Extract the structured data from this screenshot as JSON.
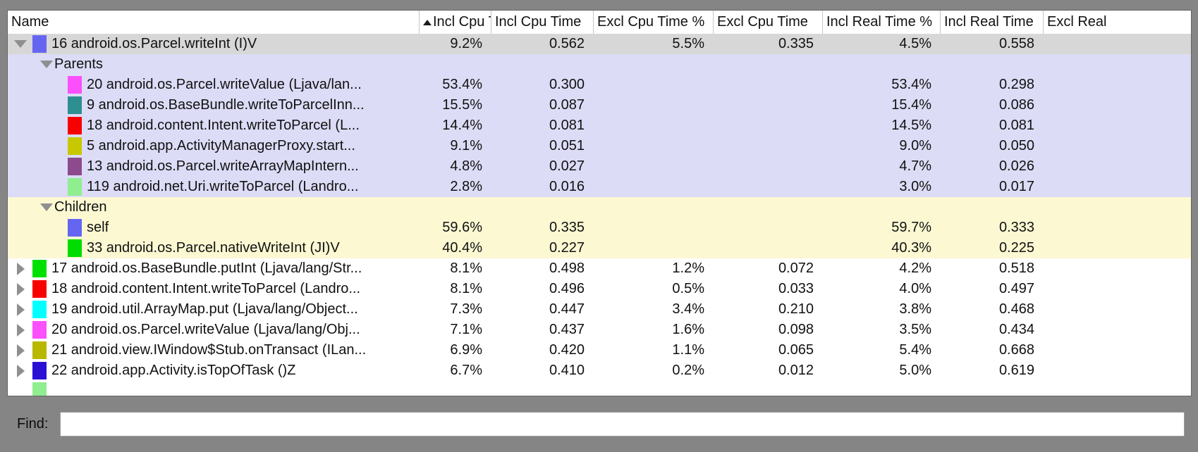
{
  "window": {
    "background": "#858585"
  },
  "table": {
    "header": {
      "columns": [
        "Name",
        "Incl Cpu Tir",
        "Incl Cpu Time",
        "Excl Cpu Time %",
        "Excl Cpu Time",
        "Incl Real Time %",
        "Incl Real Time",
        "Excl Real"
      ],
      "sorted_column": "Incl Cpu Tir",
      "sort_direction": "ascending",
      "sort_icon": "triangle-up"
    },
    "section_colors": {
      "selected": "#d7d7d7",
      "parents": "#dcdcf7",
      "children": "#fbf8d2",
      "normal": "#ffffff"
    },
    "rows": [
      {
        "kind": "top",
        "arrow": "down",
        "swatch": "#6565f2",
        "bg": "selected",
        "name": "16 android.os.Parcel.writeInt (I)V",
        "values": [
          "9.2%",
          "0.562",
          "5.5%",
          "0.335",
          "4.5%",
          "0.558",
          ""
        ]
      },
      {
        "kind": "group",
        "arrow": "down",
        "bg": "parents",
        "name": "Parents"
      },
      {
        "kind": "sub",
        "swatch": "#fb4ffb",
        "bg": "parents",
        "name": "20 android.os.Parcel.writeValue (Ljava/lan...",
        "values": [
          "53.4%",
          "0.300",
          "",
          "",
          "53.4%",
          "0.298",
          ""
        ]
      },
      {
        "kind": "sub",
        "swatch": "#2d8f8f",
        "bg": "parents",
        "name": "9 android.os.BaseBundle.writeToParcelInn...",
        "values": [
          "15.5%",
          "0.087",
          "",
          "",
          "15.4%",
          "0.086",
          ""
        ]
      },
      {
        "kind": "sub",
        "swatch": "#f60000",
        "bg": "parents",
        "name": "18 android.content.Intent.writeToParcel (L...",
        "values": [
          "14.4%",
          "0.081",
          "",
          "",
          "14.5%",
          "0.081",
          ""
        ]
      },
      {
        "kind": "sub",
        "swatch": "#c8c800",
        "bg": "parents",
        "name": "5 android.app.ActivityManagerProxy.start...",
        "values": [
          "9.1%",
          "0.051",
          "",
          "",
          "9.0%",
          "0.050",
          ""
        ]
      },
      {
        "kind": "sub",
        "swatch": "#8d4a8d",
        "bg": "parents",
        "name": "13 android.os.Parcel.writeArrayMapIntern...",
        "values": [
          "4.8%",
          "0.027",
          "",
          "",
          "4.7%",
          "0.026",
          ""
        ]
      },
      {
        "kind": "sub",
        "swatch": "#8fee8f",
        "bg": "parents",
        "name": "119 android.net.Uri.writeToParcel (Landro...",
        "values": [
          "2.8%",
          "0.016",
          "",
          "",
          "3.0%",
          "0.017",
          ""
        ]
      },
      {
        "kind": "group",
        "arrow": "down",
        "bg": "children",
        "name": "Children"
      },
      {
        "kind": "sub",
        "swatch": "#6565f2",
        "bg": "children",
        "name": "self",
        "values": [
          "59.6%",
          "0.335",
          "",
          "",
          "59.7%",
          "0.333",
          ""
        ]
      },
      {
        "kind": "sub",
        "swatch": "#00dc00",
        "bg": "children",
        "name": "33 android.os.Parcel.nativeWriteInt (JI)V",
        "values": [
          "40.4%",
          "0.227",
          "",
          "",
          "40.3%",
          "0.225",
          ""
        ]
      },
      {
        "kind": "top",
        "arrow": "right",
        "swatch": "#00e000",
        "bg": "normal",
        "name": "17 android.os.BaseBundle.putInt (Ljava/lang/Str...",
        "values": [
          "8.1%",
          "0.498",
          "1.2%",
          "0.072",
          "4.2%",
          "0.518",
          ""
        ]
      },
      {
        "kind": "top",
        "arrow": "right",
        "swatch": "#f60000",
        "bg": "normal",
        "name": "18 android.content.Intent.writeToParcel (Landro...",
        "values": [
          "8.1%",
          "0.496",
          "0.5%",
          "0.033",
          "4.0%",
          "0.497",
          ""
        ]
      },
      {
        "kind": "top",
        "arrow": "right",
        "swatch": "#00ffff",
        "bg": "normal",
        "name": "19 android.util.ArrayMap.put (Ljava/lang/Object...",
        "values": [
          "7.3%",
          "0.447",
          "3.4%",
          "0.210",
          "3.8%",
          "0.468",
          ""
        ]
      },
      {
        "kind": "top",
        "arrow": "right",
        "swatch": "#fb50fb",
        "bg": "normal",
        "name": "20 android.os.Parcel.writeValue (Ljava/lang/Obj...",
        "values": [
          "7.1%",
          "0.437",
          "1.6%",
          "0.098",
          "3.5%",
          "0.434",
          ""
        ]
      },
      {
        "kind": "top",
        "arrow": "right",
        "swatch": "#b8b800",
        "bg": "normal",
        "name": "21 android.view.IWindow$Stub.onTransact (ILan...",
        "values": [
          "6.9%",
          "0.420",
          "1.1%",
          "0.065",
          "5.4%",
          "0.668",
          ""
        ]
      },
      {
        "kind": "top",
        "arrow": "right",
        "swatch": "#2a10d4",
        "bg": "normal",
        "name": "22 android.app.Activity.isTopOfTask ()Z",
        "values": [
          "6.7%",
          "0.410",
          "0.2%",
          "0.012",
          "5.0%",
          "0.619",
          ""
        ]
      },
      {
        "kind": "partial",
        "swatch": "#8fee8f",
        "bg": "normal"
      }
    ]
  },
  "find": {
    "label": "Find:",
    "value": ""
  }
}
